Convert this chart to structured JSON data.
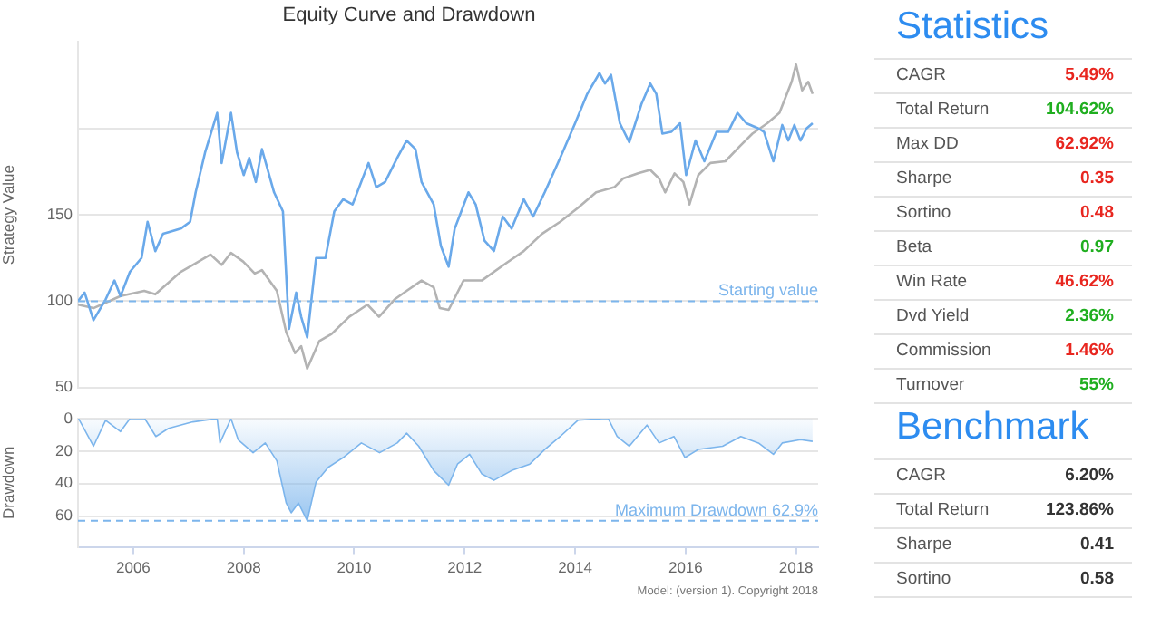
{
  "chart_data": [
    {
      "type": "line",
      "title": "Equity Curve and Drawdown",
      "ylabel": "Strategy Value",
      "xlim": [
        2005,
        2018.4
      ],
      "xticks": [
        2006,
        2008,
        2010,
        2012,
        2014,
        2016,
        2018
      ],
      "ylim": [
        50,
        250
      ],
      "yticks": [
        50,
        100,
        150,
        {
          "value": 200,
          "label": null
        }
      ],
      "grid": "y",
      "tick_labels": "y",
      "ref_lines": [
        {
          "axis": "y",
          "value": 100,
          "label": "Starting value",
          "color": "#7cb5ec",
          "line_style": "dashed"
        }
      ],
      "series": [
        {
          "color": "#6aa9ea",
          "x": [
            2005.0,
            2005.12,
            2005.28,
            2005.5,
            2005.66,
            2005.77,
            2005.94,
            2006.15,
            2006.26,
            2006.4,
            2006.54,
            2006.86,
            2007.03,
            2007.13,
            2007.3,
            2007.52,
            2007.6,
            2007.77,
            2007.88,
            2008.0,
            2008.1,
            2008.22,
            2008.33,
            2008.55,
            2008.71,
            2008.82,
            2008.95,
            2009.04,
            2009.15,
            2009.31,
            2009.48,
            2009.64,
            2009.8,
            2009.97,
            2010.26,
            2010.4,
            2010.56,
            2010.78,
            2010.95,
            2011.11,
            2011.22,
            2011.44,
            2011.57,
            2011.71,
            2011.82,
            2012.07,
            2012.2,
            2012.36,
            2012.53,
            2012.69,
            2012.85,
            2013.07,
            2013.24,
            2013.45,
            2013.73,
            2014.0,
            2014.22,
            2014.44,
            2014.54,
            2014.65,
            2014.81,
            2014.98,
            2015.2,
            2015.36,
            2015.47,
            2015.58,
            2015.74,
            2015.9,
            2016.01,
            2016.18,
            2016.34,
            2016.56,
            2016.77,
            2016.94,
            2017.1,
            2017.32,
            2017.42,
            2017.59,
            2017.75,
            2017.86,
            2017.97,
            2018.08,
            2018.19,
            2018.3
          ],
          "values": [
            100,
            105,
            89,
            101,
            112,
            103,
            117,
            125,
            146,
            129,
            139,
            142,
            146,
            163,
            186,
            209,
            180,
            209,
            186,
            173,
            183,
            169,
            188,
            163,
            152,
            84,
            105,
            91,
            79,
            125,
            125,
            152,
            159,
            156,
            180,
            166,
            169,
            183,
            193,
            188,
            169,
            156,
            132,
            120,
            142,
            163,
            156,
            135,
            129,
            149,
            142,
            159,
            149,
            163,
            183,
            203,
            220,
            232,
            226,
            231,
            203,
            192,
            214,
            226,
            220,
            197,
            198,
            203,
            173,
            193,
            181,
            198,
            198,
            209,
            203,
            200,
            198,
            181,
            202,
            193,
            202,
            193,
            200,
            203
          ]
        },
        {
          "color": "#b3b3b3",
          "x": [
            2005.0,
            2005.28,
            2005.77,
            2006.2,
            2006.4,
            2006.86,
            2007.08,
            2007.4,
            2007.6,
            2007.77,
            2007.99,
            2008.2,
            2008.33,
            2008.6,
            2008.77,
            2008.93,
            2009.04,
            2009.15,
            2009.37,
            2009.59,
            2009.91,
            2010.24,
            2010.45,
            2010.73,
            2010.95,
            2011.22,
            2011.44,
            2011.55,
            2011.71,
            2011.98,
            2012.31,
            2012.75,
            2013.07,
            2013.4,
            2013.73,
            2014.05,
            2014.38,
            2014.71,
            2014.87,
            2015.14,
            2015.36,
            2015.52,
            2015.63,
            2015.8,
            2015.96,
            2016.07,
            2016.23,
            2016.45,
            2016.72,
            2016.99,
            2017.21,
            2017.48,
            2017.7,
            2017.92,
            2018.0,
            2018.11,
            2018.22,
            2018.3
          ],
          "values": [
            98,
            96,
            103,
            106,
            104,
            117,
            121,
            127,
            121,
            128,
            123,
            116,
            118,
            106,
            82,
            70,
            74,
            61,
            77,
            81,
            91,
            98,
            91,
            101,
            106,
            112,
            108,
            96,
            95,
            112,
            112,
            122,
            129,
            139,
            146,
            154,
            163,
            166,
            171,
            174,
            176,
            171,
            163,
            174,
            169,
            156,
            173,
            180,
            181,
            190,
            197,
            203,
            209,
            227,
            237,
            222,
            227,
            220
          ]
        }
      ]
    },
    {
      "type": "area",
      "ylabel": "Drawdown",
      "color": "#7cb5ec",
      "xlim": [
        2005,
        2018.4
      ],
      "xticks": [
        2006,
        2008,
        2010,
        2012,
        2014,
        2016,
        2018
      ],
      "ylim": [
        79,
        0
      ],
      "yticks": [
        0,
        20,
        40,
        60
      ],
      "grid": "y",
      "ref_lines": [
        {
          "axis": "y",
          "value": 62.9,
          "label": "Maximum Drawdown 62.9%",
          "color": "#7cb5ec",
          "line_style": "dashed"
        }
      ],
      "annotations": [
        "Model: (version 1). Copyright 2018"
      ],
      "x": [
        2005.01,
        2005.28,
        2005.5,
        2005.77,
        2005.94,
        2006.21,
        2006.41,
        2006.64,
        2007.08,
        2007.52,
        2007.57,
        2007.77,
        2007.9,
        2008.17,
        2008.39,
        2008.6,
        2008.77,
        2008.86,
        2008.99,
        2009.15,
        2009.31,
        2009.53,
        2009.8,
        2010.13,
        2010.46,
        2010.78,
        2010.95,
        2011.17,
        2011.44,
        2011.71,
        2011.87,
        2012.09,
        2012.31,
        2012.53,
        2012.85,
        2013.18,
        2013.45,
        2013.73,
        2014.05,
        2014.49,
        2014.6,
        2014.76,
        2014.98,
        2015.3,
        2015.52,
        2015.79,
        2015.99,
        2016.23,
        2016.67,
        2017.0,
        2017.32,
        2017.59,
        2017.75,
        2018.08,
        2018.3
      ],
      "values": [
        0,
        17,
        1,
        8,
        0,
        0,
        11,
        6,
        2,
        0,
        15,
        0,
        13,
        21,
        15,
        26,
        52,
        58,
        52,
        62.9,
        39,
        30,
        24,
        15,
        21,
        15,
        9,
        17,
        32,
        41,
        28,
        22,
        34,
        38,
        32,
        28,
        19,
        11,
        1,
        0,
        0,
        11,
        17,
        4,
        15,
        11,
        24,
        19,
        17,
        11,
        15,
        22,
        15,
        13,
        14
      ]
    },
    {
      "type": "other",
      "title": "Statistics",
      "categories": [
        "CAGR",
        "Total Return",
        "Max DD",
        "Sharpe",
        "Sortino",
        "Beta",
        "Win Rate",
        "Dvd Yield",
        "Commission",
        "Turnover"
      ],
      "value_labels": [
        "5.49%",
        "104.62%",
        "62.92%",
        "0.35",
        "0.48",
        "0.97",
        "46.62%",
        "2.36%",
        "1.46%",
        "55%"
      ],
      "colors": [
        "#e8261f",
        "#1fae1f",
        "#e8261f",
        "#e8261f",
        "#e8261f",
        "#1fae1f",
        "#e8261f",
        "#1fae1f",
        "#e8261f",
        "#1fae1f"
      ]
    },
    {
      "type": "other",
      "title": "Benchmark",
      "categories": [
        "CAGR",
        "Total Return",
        "Sharpe",
        "Sortino"
      ],
      "value_labels": [
        "6.20%",
        "123.86%",
        "0.41",
        "0.58"
      ],
      "colors": [
        "#333333",
        "#333333",
        "#333333",
        "#333333"
      ]
    }
  ]
}
